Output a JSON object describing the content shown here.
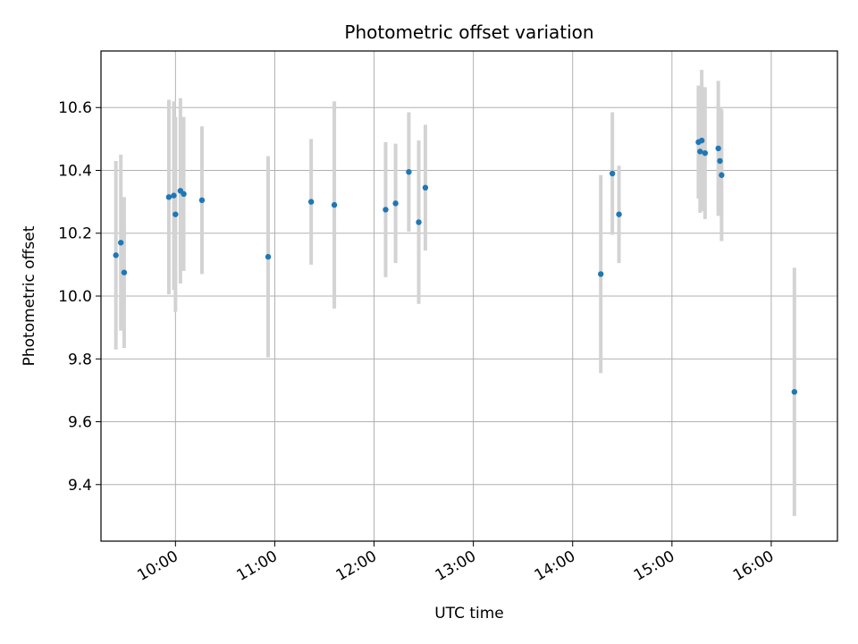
{
  "chart_data": {
    "type": "scatter",
    "title": "Photometric offset variation",
    "xlabel": "UTC time",
    "ylabel": "Photometric offset",
    "grid": true,
    "x_ticks": [
      "10:00",
      "11:00",
      "12:00",
      "13:00",
      "14:00",
      "15:00",
      "16:00"
    ],
    "y_ticks": [
      "9.4",
      "9.6",
      "9.8",
      "10.0",
      "10.2",
      "10.4",
      "10.6"
    ],
    "x_range": [
      "09:15",
      "16:40"
    ],
    "ylim": [
      9.22,
      10.78
    ],
    "colors": {
      "points": "#1f77b4",
      "error_bars": "#d3d3d3",
      "grid": "#b0b0b0"
    },
    "series": [
      {
        "x": [
          "09:24",
          "09:27",
          "09:29",
          "09:56",
          "09:59",
          "10:00",
          "10:03",
          "10:05",
          "10:16",
          "10:56",
          "11:22",
          "11:36",
          "12:07",
          "12:13",
          "12:21",
          "12:27",
          "12:31",
          "14:17",
          "14:24",
          "14:28",
          "15:16",
          "15:17",
          "15:18",
          "15:20",
          "15:28",
          "15:29",
          "15:30"
        ],
        "y": [
          10.13,
          10.17,
          10.075,
          10.315,
          10.32,
          10.26,
          10.335,
          10.325,
          10.305,
          10.125,
          10.3,
          10.29,
          10.275,
          10.295,
          10.395,
          10.235,
          10.345,
          10.07,
          10.39,
          10.26,
          10.49,
          10.46,
          10.495,
          10.455,
          10.47,
          10.43,
          10.385
        ],
        "err": [
          0.3,
          0.28,
          0.24,
          0.31,
          0.3,
          0.31,
          0.295,
          0.245,
          0.235,
          0.32,
          0.2,
          0.33,
          0.215,
          0.19,
          0.19,
          0.26,
          0.2,
          0.315,
          0.195,
          0.155,
          0.18,
          0.195,
          0.225,
          0.21,
          0.215,
          0.17,
          0.21
        ]
      },
      {
        "x": [
          "16:14"
        ],
        "y": [
          9.695
        ],
        "err": [
          0.395
        ]
      }
    ]
  }
}
